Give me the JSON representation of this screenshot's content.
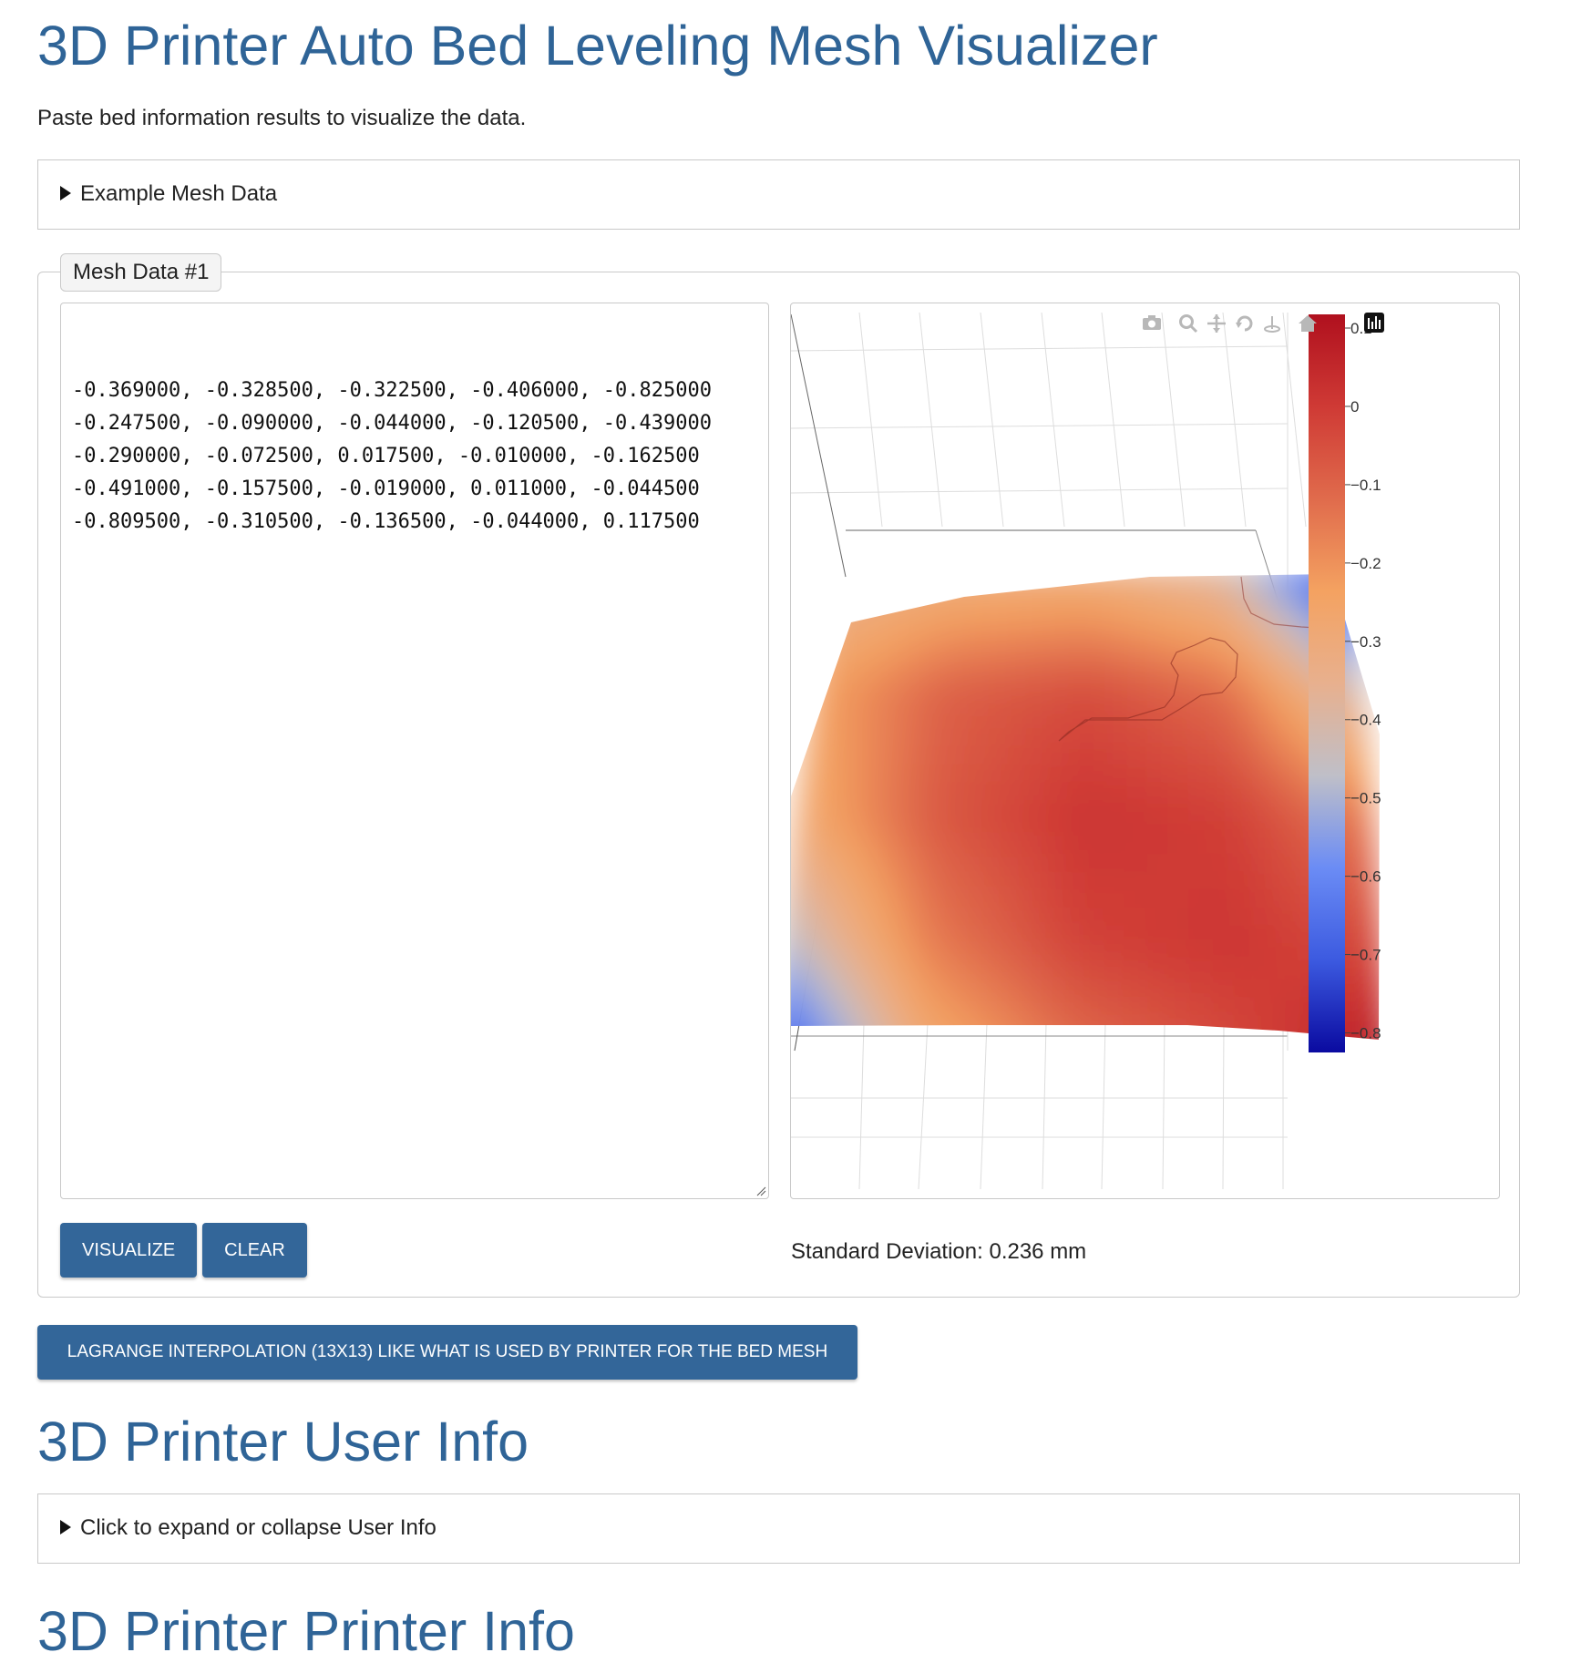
{
  "page": {
    "title": "3D Printer Auto Bed Leveling Mesh Visualizer",
    "description": "Paste bed information results to visualize the data."
  },
  "example": {
    "summary": "Example Mesh Data"
  },
  "mesh": {
    "legend": "Mesh Data #1",
    "rows": [
      "-0.369000, -0.328500, -0.322500, -0.406000, -0.825000",
      "-0.247500, -0.090000, -0.044000, -0.120500, -0.439000",
      "-0.290000, -0.072500, 0.017500, -0.010000, -0.162500",
      "-0.491000, -0.157500, -0.019000, 0.011000, -0.044500",
      "-0.809500, -0.310500, -0.136500, -0.044000, 0.117500"
    ],
    "visualize_label": "Visualize",
    "clear_label": "Clear",
    "std_dev": "Standard Deviation: 0.236 mm"
  },
  "chart_data": {
    "type": "heatmap",
    "title": "",
    "z": [
      [
        -0.369,
        -0.3285,
        -0.3225,
        -0.406,
        -0.825
      ],
      [
        -0.2475,
        -0.09,
        -0.044,
        -0.1205,
        -0.439
      ],
      [
        -0.29,
        -0.0725,
        0.0175,
        -0.01,
        -0.1625
      ],
      [
        -0.491,
        -0.1575,
        -0.019,
        0.011,
        -0.0445
      ],
      [
        -0.8095,
        -0.3105,
        -0.1365,
        -0.044,
        0.1175
      ]
    ],
    "colorscale": [
      "#0a0aa0",
      "#3c5ae0",
      "#6b8cf5",
      "#bfbfc8",
      "#e8b08e",
      "#f4a261",
      "#e06b4c",
      "#cf3a35",
      "#b0101e"
    ],
    "zmin": -0.825,
    "zmax": 0.1175,
    "colorbar_ticks": [
      "0.1",
      "0",
      "−0.1",
      "−0.2",
      "−0.3",
      "−0.4",
      "−0.5",
      "−0.6",
      "−0.7",
      "−0.8"
    ],
    "colorbar_tick_values": [
      0.1,
      0,
      -0.1,
      -0.2,
      -0.3,
      -0.4,
      -0.5,
      -0.6,
      -0.7,
      -0.8
    ],
    "modebar_icons": [
      "camera-icon",
      "zoom-icon",
      "pan-icon",
      "orbit-rotation-icon",
      "turntable-rotation-icon",
      "home-icon",
      "plotly-logo-icon"
    ]
  },
  "lagrange": {
    "label": "Lagrange interpolation (13x13) like what is used by printer for the bed mesh"
  },
  "user": {
    "title": "3D Printer User Info",
    "summary": "Click to expand or collapse User Info"
  },
  "printer": {
    "title": "3D Printer Printer Info"
  }
}
